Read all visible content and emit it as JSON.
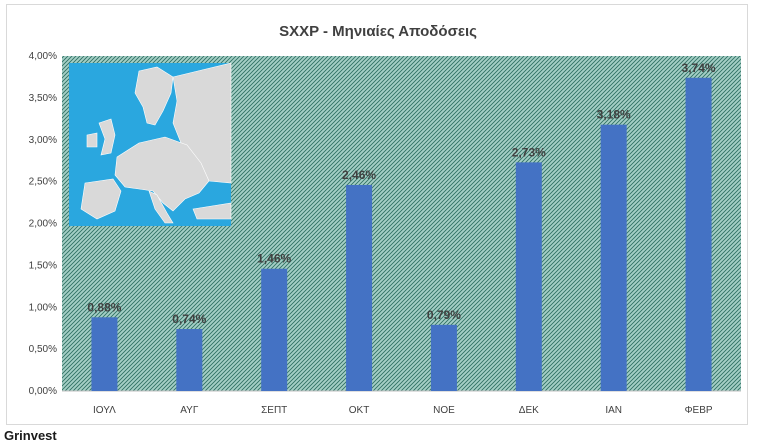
{
  "chart_data": {
    "type": "bar",
    "title": "SXXP - Μηνιαίες Αποδόσεις",
    "categories": [
      "ΙΟΥΛ",
      "ΑΥΓ",
      "ΣΕΠΤ",
      "ΟΚΤ",
      "ΝΟΕ",
      "ΔΕΚ",
      "ΙΑΝ",
      "ΦΕΒΡ"
    ],
    "values": [
      0.88,
      0.74,
      1.46,
      2.46,
      0.79,
      2.73,
      3.18,
      3.74
    ],
    "data_labels": [
      "0,88%",
      "0,74%",
      "1,46%",
      "2,46%",
      "0,79%",
      "2,73%",
      "3,18%",
      "3,74%"
    ],
    "ylim": [
      0,
      4
    ],
    "yticks": [
      "0,00%",
      "0,50%",
      "1,00%",
      "1,50%",
      "2,00%",
      "2,50%",
      "3,00%",
      "3,50%",
      "4,00%"
    ],
    "grid": false,
    "legend": "none",
    "colors": {
      "bar": "#4472c4",
      "plot_background": "#a5cfc6",
      "hatch": "#2f6f62",
      "label": "#404040"
    }
  },
  "footer": {
    "label": "Grinvest"
  }
}
